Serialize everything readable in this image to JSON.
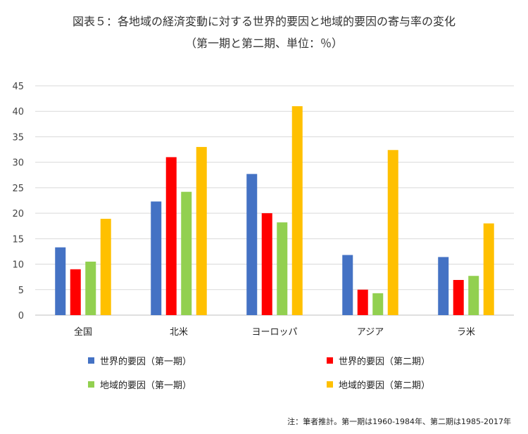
{
  "chart_data": {
    "type": "bar",
    "title": "図表５：各地域の経済変動に対する世界的要因と地域的要因の寄与率の変化",
    "subtitle": "（第一期と第二期、単位：％）",
    "categories": [
      "全国",
      "北米",
      "ヨーロッパ",
      "アジア",
      "ラ米"
    ],
    "series": [
      {
        "name": "世界的要因（第一期）",
        "color": "#4472C4",
        "values": [
          13.3,
          22.3,
          27.7,
          11.8,
          11.4
        ]
      },
      {
        "name": "世界的要因（第二期）",
        "color": "#FF0000",
        "values": [
          9.0,
          31.0,
          20.0,
          5.0,
          6.9
        ]
      },
      {
        "name": "地域的要因（第一期）",
        "color": "#92D050",
        "values": [
          10.5,
          24.2,
          18.2,
          4.3,
          7.7
        ]
      },
      {
        "name": "地域的要因（第二期）",
        "color": "#FFC000",
        "values": [
          18.9,
          33.0,
          41.0,
          32.4,
          18.0
        ]
      }
    ],
    "ylim": [
      0,
      45
    ],
    "yticks": [
      0,
      5,
      10,
      15,
      20,
      25,
      30,
      35,
      40,
      45
    ],
    "grid": true,
    "legend_position": "bottom",
    "xlabel": "",
    "ylabel": ""
  },
  "note": "注：筆者推計。第一期は1960-1984年、第二期は1985-2017年"
}
